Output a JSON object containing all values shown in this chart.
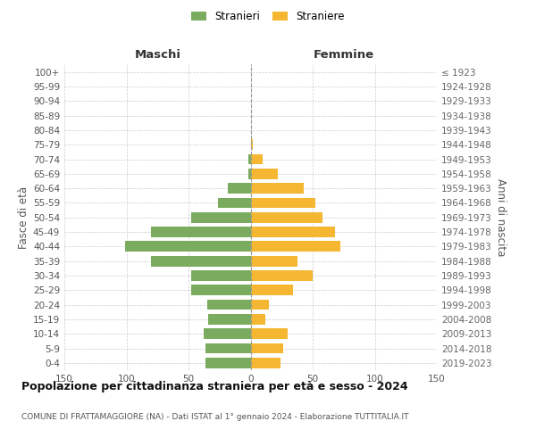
{
  "age_groups": [
    "100+",
    "95-99",
    "90-94",
    "85-89",
    "80-84",
    "75-79",
    "70-74",
    "65-69",
    "60-64",
    "55-59",
    "50-54",
    "45-49",
    "40-44",
    "35-39",
    "30-34",
    "25-29",
    "20-24",
    "15-19",
    "10-14",
    "5-9",
    "0-4"
  ],
  "birth_years": [
    "≤ 1923",
    "1924-1928",
    "1929-1933",
    "1934-1938",
    "1939-1943",
    "1944-1948",
    "1949-1953",
    "1954-1958",
    "1959-1963",
    "1964-1968",
    "1969-1973",
    "1974-1978",
    "1979-1983",
    "1984-1988",
    "1989-1993",
    "1994-1998",
    "1999-2003",
    "2004-2008",
    "2009-2013",
    "2014-2018",
    "2019-2023"
  ],
  "males": [
    0,
    0,
    0,
    0,
    0,
    0,
    2,
    2,
    18,
    26,
    48,
    80,
    101,
    80,
    48,
    48,
    35,
    34,
    38,
    36,
    36
  ],
  "females": [
    0,
    0,
    0,
    0,
    0,
    2,
    10,
    22,
    43,
    52,
    58,
    68,
    72,
    38,
    50,
    34,
    15,
    12,
    30,
    26,
    24
  ],
  "male_color": "#7aab5e",
  "female_color": "#f5b731",
  "background_color": "#ffffff",
  "grid_color": "#cccccc",
  "title": "Popolazione per cittadinanza straniera per età e sesso - 2024",
  "subtitle": "COMUNE DI FRATTAMAGGIORE (NA) - Dati ISTAT al 1° gennaio 2024 - Elaborazione TUTTITALIA.IT",
  "xlabel_left": "Maschi",
  "xlabel_right": "Femmine",
  "ylabel_left": "Fasce di età",
  "ylabel_right": "Anni di nascita",
  "xlim": 150,
  "legend_labels": [
    "Stranieri",
    "Straniere"
  ],
  "tick_fontsize": 7.5,
  "bar_height": 0.72
}
